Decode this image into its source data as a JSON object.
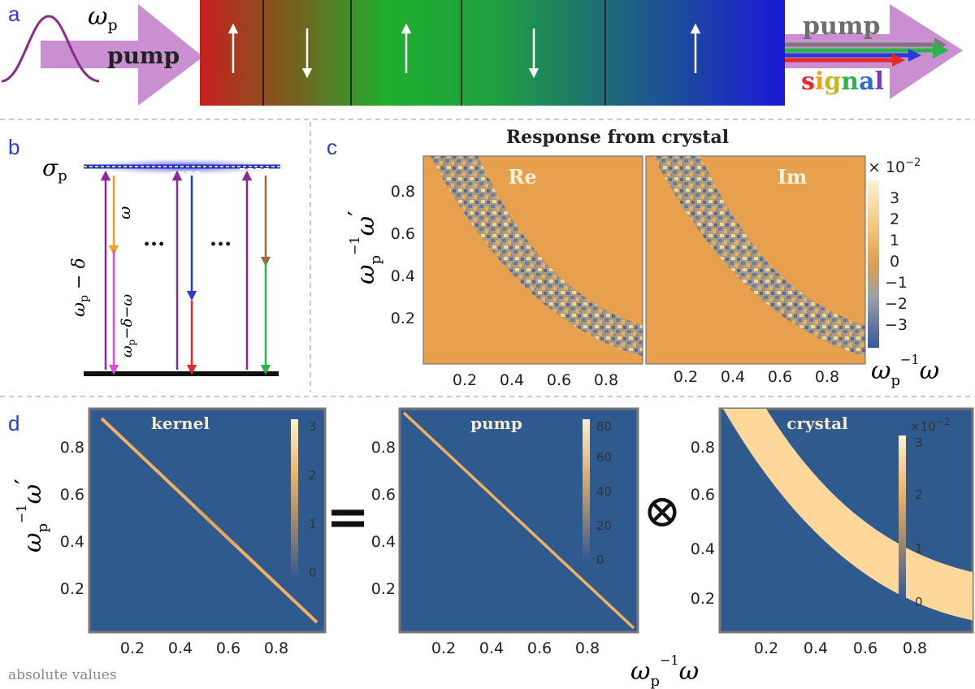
{
  "panels": {
    "a": "a",
    "b": "b",
    "c": "c",
    "d": "d"
  },
  "panel_a": {
    "omega_symbol": "ω",
    "omega_sub": "p",
    "pump_label": "pump",
    "out_pump_label": "pump",
    "out_signal_letters": [
      "s",
      "i",
      "g",
      "n",
      "a",
      "l"
    ],
    "signal_colors": [
      "#e8272a",
      "#f0a020",
      "#d6c820",
      "#2ab54a",
      "#2a6ad6",
      "#7a3ab6"
    ],
    "domain_arrows": [
      "up",
      "down",
      "up",
      "down",
      "up"
    ]
  },
  "panel_b": {
    "sigma_symbol": "σ",
    "sigma_sub": "p",
    "label_omega": "ω",
    "label_wp_delta": "ω",
    "label_wp_delta_rest": " − δ",
    "label_wp_delta_omega": "ω",
    "label_wp_delta_omega_rest": "−δ−ω",
    "ellipsis": [
      "...",
      "..."
    ]
  },
  "panel_c": {
    "title": "Response from crystal",
    "re_label": "Re",
    "im_label": "Im",
    "y_ticks": [
      "0.8",
      "0.6",
      "0.4",
      "0.2"
    ],
    "x_ticks": [
      "0.2",
      "0.4",
      "0.6",
      "0.8"
    ],
    "colorbar_exponent": "× 10",
    "colorbar_exponent_power": "−2",
    "colorbar_ticks": [
      "3",
      "2",
      "1",
      "0",
      "−1",
      "−2",
      "−3"
    ],
    "y_axis_label": "ω",
    "x_axis_label": "ω"
  },
  "panel_d": {
    "kernel_label": "kernel",
    "pump_label": "pump",
    "crystal_label": "crystal",
    "equals": "=",
    "otimes": "⊗",
    "y_ticks": [
      "0.8",
      "0.6",
      "0.4",
      "0.2"
    ],
    "x_ticks": [
      "0.2",
      "0.4",
      "0.6",
      "0.8"
    ],
    "kernel_cb": [
      "3",
      "2",
      "1",
      "0"
    ],
    "pump_cb": [
      "80",
      "60",
      "40",
      "20",
      "0"
    ],
    "crystal_cb": [
      "3",
      "2",
      "1",
      "0"
    ],
    "crystal_exponent": "×10",
    "crystal_exponent_power": "−2",
    "footnote": "absolute values",
    "y_axis_label": "ω",
    "x_axis_label": "ω"
  },
  "colors": {
    "plot_orange": "#e6a04e",
    "plot_blue": "#2f5a8e",
    "band_light": "#fdd89a",
    "pump_purple": "#c98fd0",
    "panel_letter": "#2a3ad6"
  }
}
